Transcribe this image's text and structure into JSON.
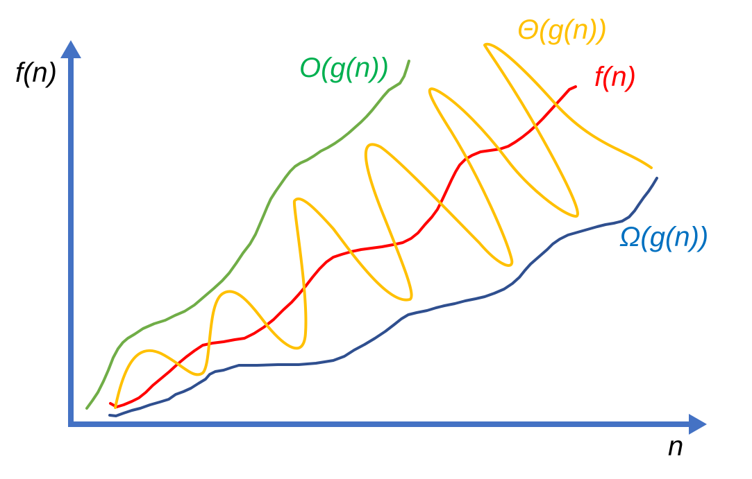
{
  "labels": {
    "y_axis": "f(n)",
    "x_axis": "n",
    "big_o": "O(g(n))",
    "theta": "Θ(g(n))",
    "f": "f(n)",
    "omega": "Ω(g(n))"
  },
  "colors": {
    "axis": "#4472c4",
    "big_o": "#70ad47",
    "big_o_label": "#00b050",
    "theta": "#ffc000",
    "f": "#ff0000",
    "omega": "#2f4f8f",
    "omega_label": "#0070c0",
    "axis_label": "#000000"
  }
}
